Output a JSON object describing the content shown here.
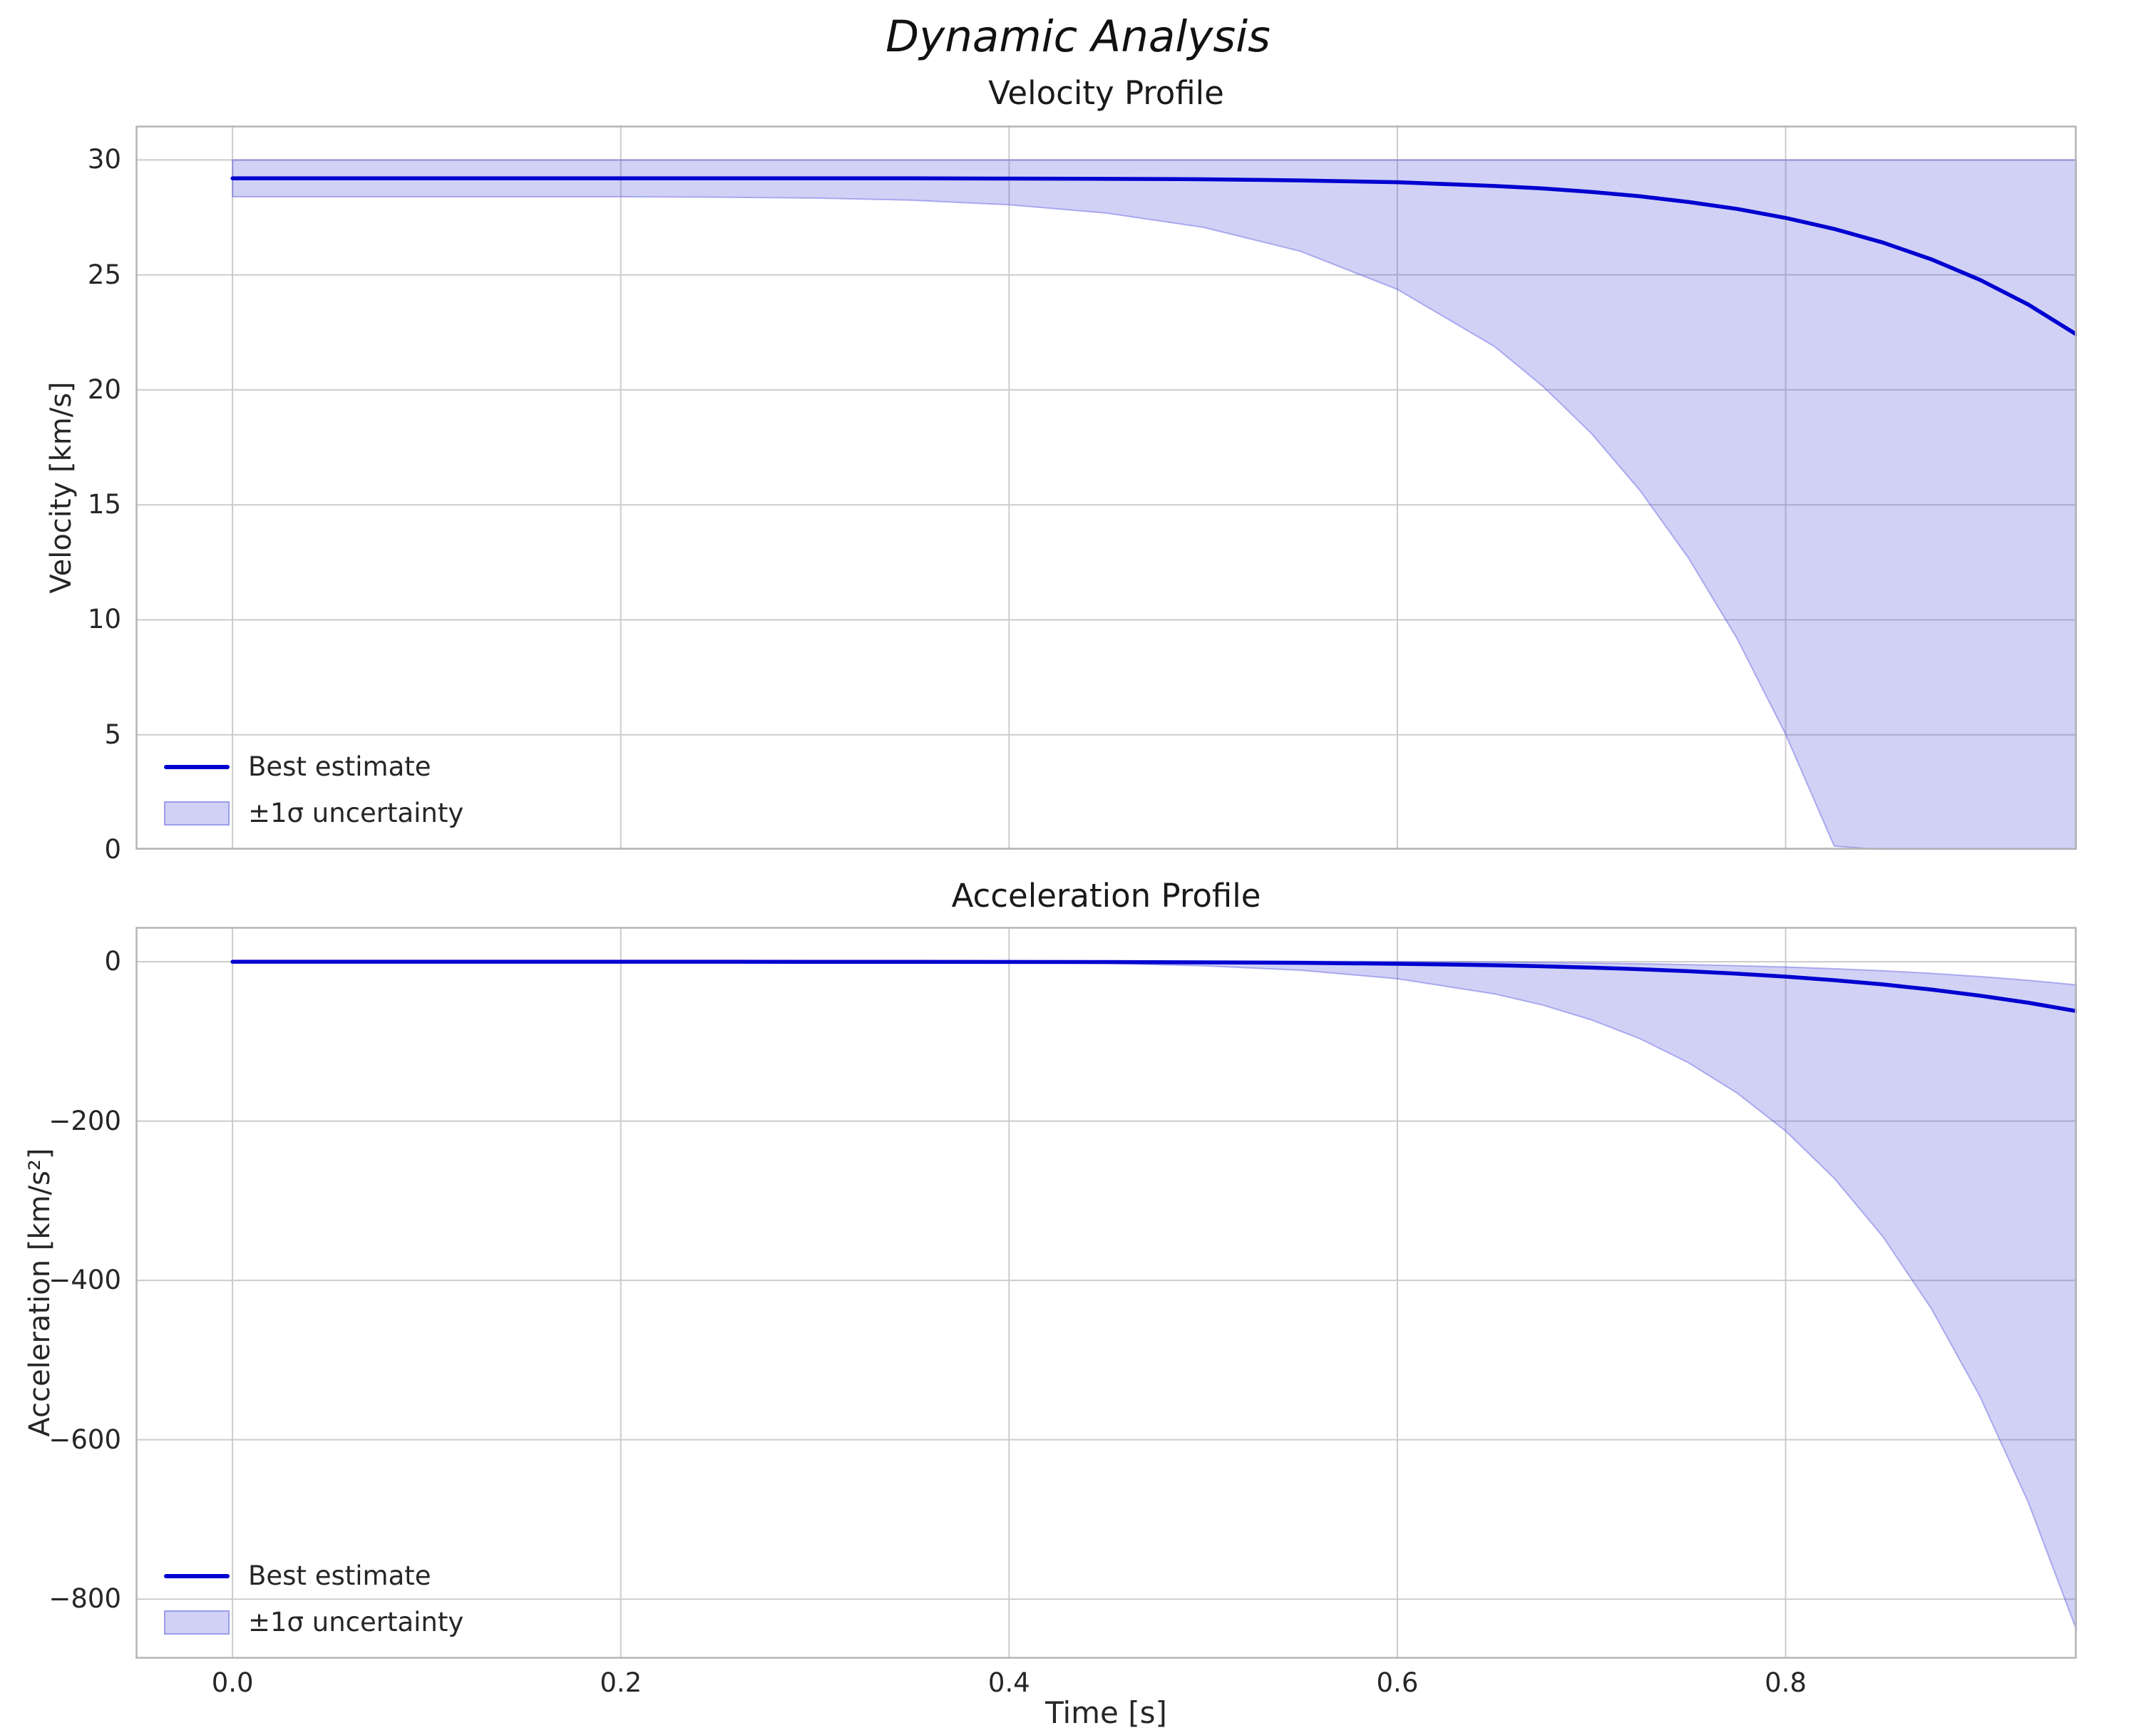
{
  "figure": {
    "suptitle": "Dynamic Analysis"
  },
  "legend": {
    "line_label": "Best estimate",
    "band_label": "±1σ uncertainty"
  },
  "colors": {
    "line": "#0000d0",
    "band_fill": "rgba(70,70,220,0.25)",
    "band_edge": "rgba(70,70,220,0.38)",
    "grid": "#cccccc",
    "spine": "#b5b5b5",
    "text": "#262626"
  },
  "chart_data": [
    {
      "type": "line",
      "title": "Velocity Profile",
      "xlabel": "",
      "ylabel": "Velocity [km/s]",
      "xlim": [
        -0.05,
        0.95
      ],
      "ylim": [
        0,
        31.5
      ],
      "xticks": [
        0,
        0.2,
        0.4,
        0.6,
        0.8
      ],
      "xtick_labels": [
        "0.0",
        "0.2",
        "0.4",
        "0.6",
        "0.8"
      ],
      "yticks": [
        0,
        5,
        10,
        15,
        20,
        25,
        30
      ],
      "ytick_labels": [
        "0",
        "5",
        "10",
        "15",
        "20",
        "25",
        "30"
      ],
      "show_x_tick_labels": false,
      "grid": true,
      "legend_position": "lower-left",
      "x": [
        0,
        0.05,
        0.1,
        0.15,
        0.2,
        0.25,
        0.3,
        0.35,
        0.4,
        0.45,
        0.5,
        0.55,
        0.6,
        0.65,
        0.675,
        0.7,
        0.725,
        0.75,
        0.775,
        0.8,
        0.825,
        0.85,
        0.875,
        0.9,
        0.925,
        0.95
      ],
      "series": [
        {
          "name": "Best estimate",
          "values": [
            29.2,
            29.2,
            29.2,
            29.2,
            29.2,
            29.2,
            29.2,
            29.2,
            29.19,
            29.18,
            29.16,
            29.11,
            29.03,
            28.87,
            28.76,
            28.61,
            28.42,
            28.17,
            27.87,
            27.48,
            27.0,
            26.41,
            25.68,
            24.79,
            23.71,
            22.4
          ]
        }
      ],
      "band": {
        "name": "±1σ uncertainty",
        "upper": [
          30,
          30,
          30,
          30,
          30,
          30,
          30,
          30,
          30,
          30,
          30,
          30,
          30,
          30,
          30,
          30,
          30,
          30,
          30,
          30,
          30,
          30,
          30,
          30,
          30,
          30
        ],
        "lower": [
          28.4,
          28.4,
          28.4,
          28.4,
          28.4,
          28.38,
          28.34,
          28.25,
          28.05,
          27.69,
          27.07,
          26.03,
          24.37,
          21.89,
          20.15,
          18.1,
          15.62,
          12.68,
          9.18,
          5.02,
          0.16,
          0,
          0,
          0,
          0,
          0
        ]
      }
    },
    {
      "type": "line",
      "title": "Acceleration Profile",
      "xlabel": "Time [s]",
      "ylabel": "Acceleration [km/s²]",
      "xlim": [
        -0.05,
        0.95
      ],
      "ylim": [
        -875,
        44
      ],
      "xticks": [
        0,
        0.2,
        0.4,
        0.6,
        0.8
      ],
      "xtick_labels": [
        "0.0",
        "0.2",
        "0.4",
        "0.6",
        "0.8"
      ],
      "yticks": [
        0,
        -200,
        -400,
        -600,
        -800
      ],
      "ytick_labels": [
        "0",
        "−200",
        "−400",
        "−600",
        "−800"
      ],
      "show_x_tick_labels": true,
      "grid": true,
      "legend_position": "lower-left",
      "x": [
        0,
        0.05,
        0.1,
        0.15,
        0.2,
        0.25,
        0.3,
        0.35,
        0.4,
        0.45,
        0.5,
        0.55,
        0.6,
        0.65,
        0.675,
        0.7,
        0.725,
        0.75,
        0.775,
        0.8,
        0.825,
        0.85,
        0.875,
        0.9,
        0.925,
        0.95
      ],
      "series": [
        {
          "name": "Best estimate",
          "values": [
            0,
            0,
            0,
            0,
            0,
            -0.01,
            -0.02,
            -0.06,
            -0.15,
            -0.33,
            -0.69,
            -1.35,
            -2.48,
            -4.35,
            -5.66,
            -7.31,
            -9.35,
            -11.85,
            -14.9,
            -18.63,
            -23.1,
            -28.4,
            -34.9,
            -42.5,
            -51.4,
            -62
          ]
        }
      ],
      "band": {
        "name": "±1σ uncertainty",
        "upper": [
          1,
          1,
          1,
          1,
          1,
          1,
          1,
          1,
          0.97,
          0.92,
          0.82,
          0.62,
          0.24,
          -0.44,
          -0.94,
          -1.61,
          -2.45,
          -3.53,
          -4.89,
          -6.59,
          -8.7,
          -11.3,
          -14.5,
          -18.5,
          -23.2,
          -29
        ],
        "lower": [
          0,
          0,
          0,
          0,
          -0.01,
          -0.02,
          -0.08,
          -0.28,
          -0.83,
          -2.13,
          -4.96,
          -10.6,
          -21.3,
          -40.3,
          -54.4,
          -73,
          -96.6,
          -126.8,
          -164.8,
          -212.5,
          -271.7,
          -344.8,
          -435.2,
          -545.3,
          -678.7,
          -840
        ]
      }
    }
  ]
}
